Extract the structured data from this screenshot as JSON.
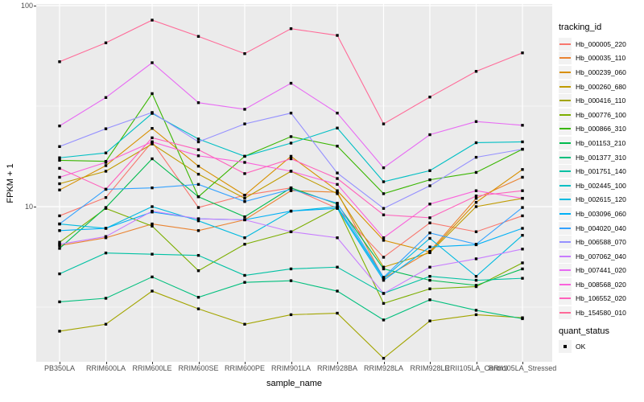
{
  "figure": {
    "background": "#FFFFFF",
    "panel_background": "#EBEBEB",
    "gridline_color": "#FFFFFF",
    "axis_text_color": "#4D4D4D",
    "legend_key_background": "#F2F2F2",
    "point_color": "#000000"
  },
  "axes": {
    "x_title": "sample_name",
    "y_title": "FPKM + 1",
    "y_tick_labels": [
      {
        "label": "100",
        "value": 100
      },
      {
        "label": "10",
        "value": 10
      }
    ],
    "y_minor_gridlines": [
      31.62,
      3.162
    ],
    "y_scale": "log10"
  },
  "legend": {
    "tracking_title": "tracking_id",
    "quant_title": "quant_status",
    "quant_items": [
      {
        "label": "OK",
        "marker": "black-filled-square"
      }
    ]
  },
  "chart_data": {
    "type": "line",
    "title": "",
    "xlabel": "sample_name",
    "ylabel": "FPKM + 1",
    "y_scale": "log10",
    "ylim": [
      1.7,
      101
    ],
    "y_breaks": [
      10,
      100
    ],
    "grid": true,
    "legend_position": "right",
    "point_shape": "filled-square (quant_status = OK)",
    "x_categories": [
      "PB350LA",
      "RRIM600LA",
      "RRIM600LE",
      "RRIM600SE",
      "RRIM600PE",
      "RRIM901LA",
      "RRIM928BA",
      "RRIM928LA",
      "RRIM928LE",
      "RRII105LA_Control",
      "RRII105LA_Stressed"
    ],
    "series": [
      {
        "name": "Hb_000005_220",
        "color": "#F8766D",
        "values": [
          9.0,
          11.1,
          21.0,
          9.9,
          11.4,
          12.4,
          9.8,
          5.6,
          8.3,
          7.5,
          9.0
        ]
      },
      {
        "name": "Hb_000035_110",
        "color": "#EA8331",
        "values": [
          6.4,
          7.0,
          8.2,
          7.6,
          8.6,
          12.0,
          11.8,
          4.4,
          6.0,
          11.0,
          14.0
        ]
      },
      {
        "name": "Hb_000239_060",
        "color": "#D89000",
        "values": [
          12.1,
          16.0,
          24.5,
          15.9,
          11.4,
          17.8,
          12.0,
          6.8,
          5.95,
          10.5,
          15.3
        ]
      },
      {
        "name": "Hb_000260_680",
        "color": "#C09B00",
        "values": [
          13.0,
          15.0,
          20.5,
          14.5,
          11.0,
          15.0,
          11.6,
          5.0,
          5.9,
          10.0,
          11.0
        ]
      },
      {
        "name": "Hb_000416_110",
        "color": "#A3A500",
        "values": [
          2.4,
          2.6,
          3.8,
          3.1,
          2.6,
          2.9,
          2.95,
          1.76,
          2.7,
          2.9,
          2.8
        ]
      },
      {
        "name": "Hb_000776_100",
        "color": "#7CAE00",
        "values": [
          6.65,
          9.8,
          8.0,
          4.8,
          6.5,
          7.5,
          9.9,
          3.3,
          3.9,
          4.0,
          5.25
        ]
      },
      {
        "name": "Hb_000866_310",
        "color": "#39B600",
        "values": [
          17.0,
          16.8,
          36.5,
          11.2,
          17.8,
          22.3,
          20.0,
          11.6,
          13.6,
          14.8,
          19.3
        ]
      },
      {
        "name": "Hb_001153_210",
        "color": "#00BB4E",
        "values": [
          6.2,
          9.9,
          17.3,
          11.2,
          8.9,
          12.4,
          10.3,
          4.9,
          4.3,
          4.06,
          4.9
        ]
      },
      {
        "name": "Hb_001377_310",
        "color": "#00BF7D",
        "values": [
          3.36,
          3.5,
          4.47,
          3.54,
          4.2,
          4.28,
          3.8,
          2.73,
          3.44,
          3.05,
          2.77
        ]
      },
      {
        "name": "Hb_001751_140",
        "color": "#00C1A3",
        "values": [
          4.63,
          5.88,
          5.8,
          5.72,
          4.55,
          4.9,
          5.0,
          3.7,
          4.5,
          4.3,
          4.4
        ]
      },
      {
        "name": "Hb_002445_100",
        "color": "#00BFC4",
        "values": [
          17.5,
          18.5,
          29.1,
          21.7,
          17.8,
          20.7,
          24.6,
          13.3,
          15.1,
          20.8,
          21.0
        ]
      },
      {
        "name": "Hb_002615_120",
        "color": "#00BAE0",
        "values": [
          8.2,
          7.8,
          10.0,
          8.5,
          7.0,
          9.5,
          10.0,
          4.4,
          6.95,
          4.5,
          7.2
        ]
      },
      {
        "name": "Hb_003096_060",
        "color": "#00B0F6",
        "values": [
          7.6,
          7.8,
          9.4,
          8.7,
          8.6,
          9.5,
          9.8,
          4.3,
          6.3,
          6.46,
          7.8
        ]
      },
      {
        "name": "Hb_004020_040",
        "color": "#35A2FF",
        "values": [
          8.2,
          12.2,
          12.4,
          12.9,
          10.6,
          12.2,
          10.4,
          4.45,
          7.4,
          6.5,
          9.9
        ]
      },
      {
        "name": "Hb_006588_070",
        "color": "#9590FF",
        "values": [
          19.9,
          24.4,
          29.4,
          21.0,
          25.8,
          29.2,
          14.7,
          9.8,
          12.7,
          17.6,
          19.3
        ]
      },
      {
        "name": "Hb_007062_040",
        "color": "#C77CFF",
        "values": [
          6.5,
          7.1,
          9.5,
          8.7,
          8.6,
          7.5,
          7.0,
          3.7,
          5.0,
          5.5,
          6.15
        ]
      },
      {
        "name": "Hb_007441_020",
        "color": "#E76BF3",
        "values": [
          25.2,
          34.9,
          52.0,
          32.9,
          30.5,
          41.1,
          29.2,
          15.6,
          22.8,
          26.5,
          25.4
        ]
      },
      {
        "name": "Hb_008568_020",
        "color": "#FA62DB",
        "values": [
          14.0,
          16.6,
          21.0,
          17.9,
          16.6,
          15.0,
          12.9,
          7.0,
          10.3,
          12.0,
          11.0
        ]
      },
      {
        "name": "Hb_106552_020",
        "color": "#FF62BC",
        "values": [
          15.5,
          12.2,
          22.0,
          19.2,
          14.6,
          17.3,
          13.8,
          9.1,
          8.8,
          11.3,
          12.0
        ]
      },
      {
        "name": "Hb_154580_010",
        "color": "#FF6A98",
        "values": [
          52.6,
          65.3,
          84.7,
          70.3,
          57.7,
          76.8,
          71.1,
          25.8,
          35.1,
          47.1,
          58.2
        ]
      }
    ]
  }
}
